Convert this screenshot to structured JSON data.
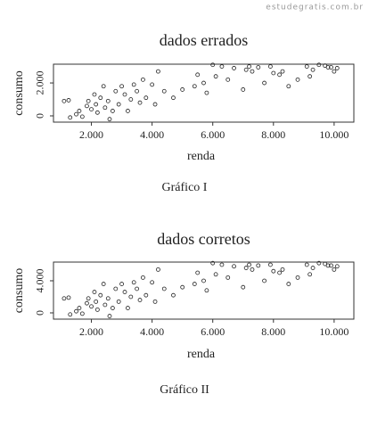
{
  "watermark": "estudegratis.com.br",
  "chart_data": [
    {
      "type": "scatter",
      "title": "dados errados",
      "xlabel": "renda",
      "ylabel": "consumo",
      "caption": "Gráfico I",
      "x": [
        1100,
        1250,
        1300,
        1500,
        1600,
        1700,
        1850,
        1900,
        2000,
        2100,
        2150,
        2200,
        2300,
        2400,
        2450,
        2550,
        2600,
        2700,
        2800,
        2900,
        3000,
        3100,
        3200,
        3300,
        3400,
        3500,
        3600,
        3700,
        3800,
        4000,
        4100,
        4200,
        4400,
        4700,
        5000,
        5400,
        5500,
        5700,
        5800,
        6000,
        6100,
        6300,
        6500,
        6700,
        7000,
        7200,
        7300,
        7500,
        7700,
        7900,
        8000,
        8200,
        8500,
        8800,
        9100,
        9300,
        9500,
        9700,
        9900,
        10000,
        10100,
        9800,
        9200,
        8300,
        7100
      ],
      "y": [
        900,
        950,
        -100,
        100,
        300,
        -50,
        600,
        900,
        400,
        1300,
        700,
        200,
        1100,
        1800,
        500,
        900,
        -200,
        300,
        1500,
        700,
        1800,
        1300,
        300,
        1000,
        1900,
        1500,
        800,
        2200,
        1100,
        1900,
        700,
        2700,
        1500,
        1100,
        1600,
        1800,
        2500,
        2000,
        1400,
        3100,
        2400,
        3000,
        2200,
        2900,
        1600,
        3000,
        2700,
        2950,
        2000,
        3000,
        2600,
        2500,
        1800,
        2200,
        3000,
        2800,
        3100,
        3050,
        2950,
        2700,
        2900,
        2950,
        2400,
        2700,
        2800
      ],
      "xlim": [
        750,
        10650
      ],
      "ylim": [
        -380,
        3140
      ],
      "xticks": [
        {
          "value": 2000,
          "label": "2.000"
        },
        {
          "value": 4000,
          "label": "4.000"
        },
        {
          "value": 6000,
          "label": "6.000"
        },
        {
          "value": 8000,
          "label": "8.000"
        },
        {
          "value": 10000,
          "label": "10.000"
        }
      ],
      "yticks": [
        0,
        {
          "value": 2000,
          "label": "2.000"
        }
      ],
      "color": "#222"
    },
    {
      "type": "scatter",
      "title": "dados corretos",
      "xlabel": "renda",
      "ylabel": "consumo",
      "caption": "Gráfico II",
      "x": [
        1100,
        1250,
        1300,
        1500,
        1600,
        1700,
        1850,
        1900,
        2000,
        2100,
        2150,
        2200,
        2300,
        2400,
        2450,
        2550,
        2600,
        2700,
        2800,
        2900,
        3000,
        3100,
        3200,
        3300,
        3400,
        3500,
        3600,
        3700,
        3800,
        4000,
        4100,
        4200,
        4400,
        4700,
        5000,
        5400,
        5500,
        5700,
        5800,
        6000,
        6100,
        6300,
        6500,
        6700,
        7000,
        7200,
        7300,
        7500,
        7700,
        7900,
        8000,
        8200,
        8500,
        8800,
        9100,
        9300,
        9500,
        9700,
        9900,
        10000,
        10100,
        9800,
        9200,
        8300,
        7100
      ],
      "y": [
        1800,
        1900,
        -200,
        200,
        600,
        -100,
        1200,
        1800,
        800,
        2600,
        1400,
        400,
        2200,
        3600,
        1000,
        1800,
        -400,
        600,
        3000,
        1400,
        3600,
        2600,
        600,
        2000,
        3800,
        3000,
        1600,
        4400,
        2200,
        3800,
        1400,
        5400,
        3000,
        2200,
        3200,
        3600,
        5000,
        4000,
        2800,
        6200,
        4800,
        6000,
        4400,
        5800,
        3200,
        6000,
        5400,
        5900,
        4000,
        6000,
        5200,
        5000,
        3600,
        4400,
        6000,
        5600,
        6200,
        6100,
        5900,
        5400,
        5800,
        5900,
        4800,
        5400,
        5600
      ],
      "xlim": [
        750,
        10650
      ],
      "ylim": [
        -780,
        6330
      ],
      "xticks": [
        {
          "value": 2000,
          "label": "2.000"
        },
        {
          "value": 4000,
          "label": "4.000"
        },
        {
          "value": 6000,
          "label": "6.000"
        },
        {
          "value": 8000,
          "label": "8.000"
        },
        {
          "value": 10000,
          "label": "10.000"
        }
      ],
      "yticks": [
        0,
        {
          "value": 4000,
          "label": "4.000"
        }
      ],
      "color": "#222"
    }
  ]
}
